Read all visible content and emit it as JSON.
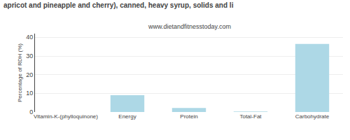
{
  "chart_data": {
    "type": "bar",
    "title": "apricot and pineapple and cherry), canned, heavy syrup, solids and li",
    "subtitle": "www.dietandfitnesstoday.com",
    "categories": [
      "Vitamin-K-(phylloquinone)",
      "Energy",
      "Protein",
      "Total-Fat",
      "Carbohydrate"
    ],
    "values": [
      0,
      9,
      2.2,
      0.3,
      36.5
    ],
    "color": "#add8e6",
    "ylabel": "Percentage of RDH (%)",
    "ylim": [
      0,
      42
    ],
    "yticks": [
      0,
      10,
      20,
      30,
      40
    ],
    "grid": true
  }
}
